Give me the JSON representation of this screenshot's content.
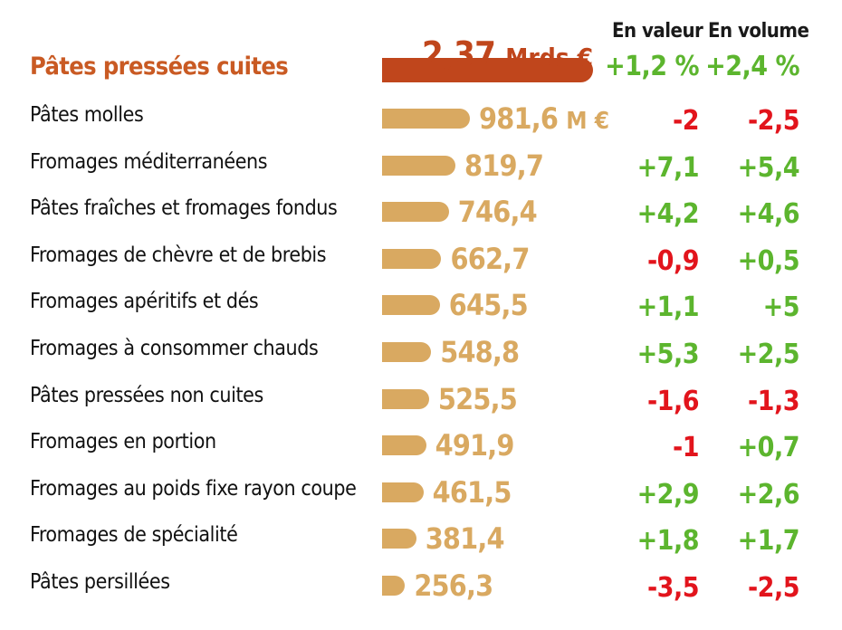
{
  "headers": {
    "value": "En valeur",
    "volume": "En volume"
  },
  "top": {
    "label": "Pâtes pressées cuites",
    "amount": "2,37",
    "unit": "Mrds €",
    "value_pct": "+1,2 %",
    "volume_pct": "+2,4 %"
  },
  "unit_first_row": "M €",
  "rows": [
    {
      "label": "Pâtes molles",
      "amount": "981,6",
      "value_pct": "-2",
      "volume_pct": "-2,5"
    },
    {
      "label": "Fromages méditerranéens",
      "amount": "819,7",
      "value_pct": "+7,1",
      "volume_pct": "+5,4"
    },
    {
      "label": "Pâtes fraîches et fromages fondus",
      "amount": "746,4",
      "value_pct": "+4,2",
      "volume_pct": "+4,6"
    },
    {
      "label": "Fromages de chèvre et de brebis",
      "amount": "662,7",
      "value_pct": "-0,9",
      "volume_pct": "+0,5"
    },
    {
      "label": "Fromages apéritifs et dés",
      "amount": "645,5",
      "value_pct": "+1,1",
      "volume_pct": "+5"
    },
    {
      "label": "Fromages à consommer chauds",
      "amount": "548,8",
      "value_pct": "+5,3",
      "volume_pct": "+2,5"
    },
    {
      "label": "Pâtes pressées non cuites",
      "amount": "525,5",
      "value_pct": "-1,6",
      "volume_pct": "-1,3"
    },
    {
      "label": "Fromages en portion",
      "amount": "491,9",
      "value_pct": "-1",
      "volume_pct": "+0,7"
    },
    {
      "label": "Fromages au poids fixe rayon coupe",
      "amount": "461,5",
      "value_pct": "+2,9",
      "volume_pct": "+2,6"
    },
    {
      "label": "Fromages de spécialité",
      "amount": "381,4",
      "value_pct": "+1,8",
      "volume_pct": "+1,7"
    },
    {
      "label": "Pâtes persillées",
      "amount": "256,3",
      "value_pct": "-3,5",
      "volume_pct": "-2,5"
    }
  ],
  "colors": {
    "top_label": "#c95a23",
    "top_bar": "#c0461c",
    "bar": "#d9a961",
    "positive": "#5cb52e",
    "negative": "#e2141c"
  },
  "chart_data": {
    "type": "bar",
    "orientation": "horizontal",
    "categories": [
      "Pâtes pressées cuites",
      "Pâtes molles",
      "Fromages méditerranéens",
      "Pâtes fraîches et fromages fondus",
      "Fromages de chèvre et de brebis",
      "Fromages apéritifs et dés",
      "Fromages à consommer chauds",
      "Pâtes pressées non cuites",
      "Fromages en portion",
      "Fromages au poids fixe rayon coupe",
      "Fromages de spécialité",
      "Pâtes persillées"
    ],
    "values_meur": [
      2370,
      981.6,
      819.7,
      746.4,
      662.7,
      645.5,
      548.8,
      525.5,
      491.9,
      461.5,
      381.4,
      256.3
    ],
    "series": [
      {
        "name": "En valeur",
        "values": [
          1.2,
          -2,
          7.1,
          4.2,
          -0.9,
          1.1,
          5.3,
          -1.6,
          -1,
          2.9,
          1.8,
          -3.5
        ]
      },
      {
        "name": "En volume",
        "values": [
          2.4,
          -2.5,
          5.4,
          4.6,
          0.5,
          5,
          2.5,
          -1.3,
          0.7,
          2.6,
          1.7,
          -2.5
        ]
      }
    ]
  }
}
